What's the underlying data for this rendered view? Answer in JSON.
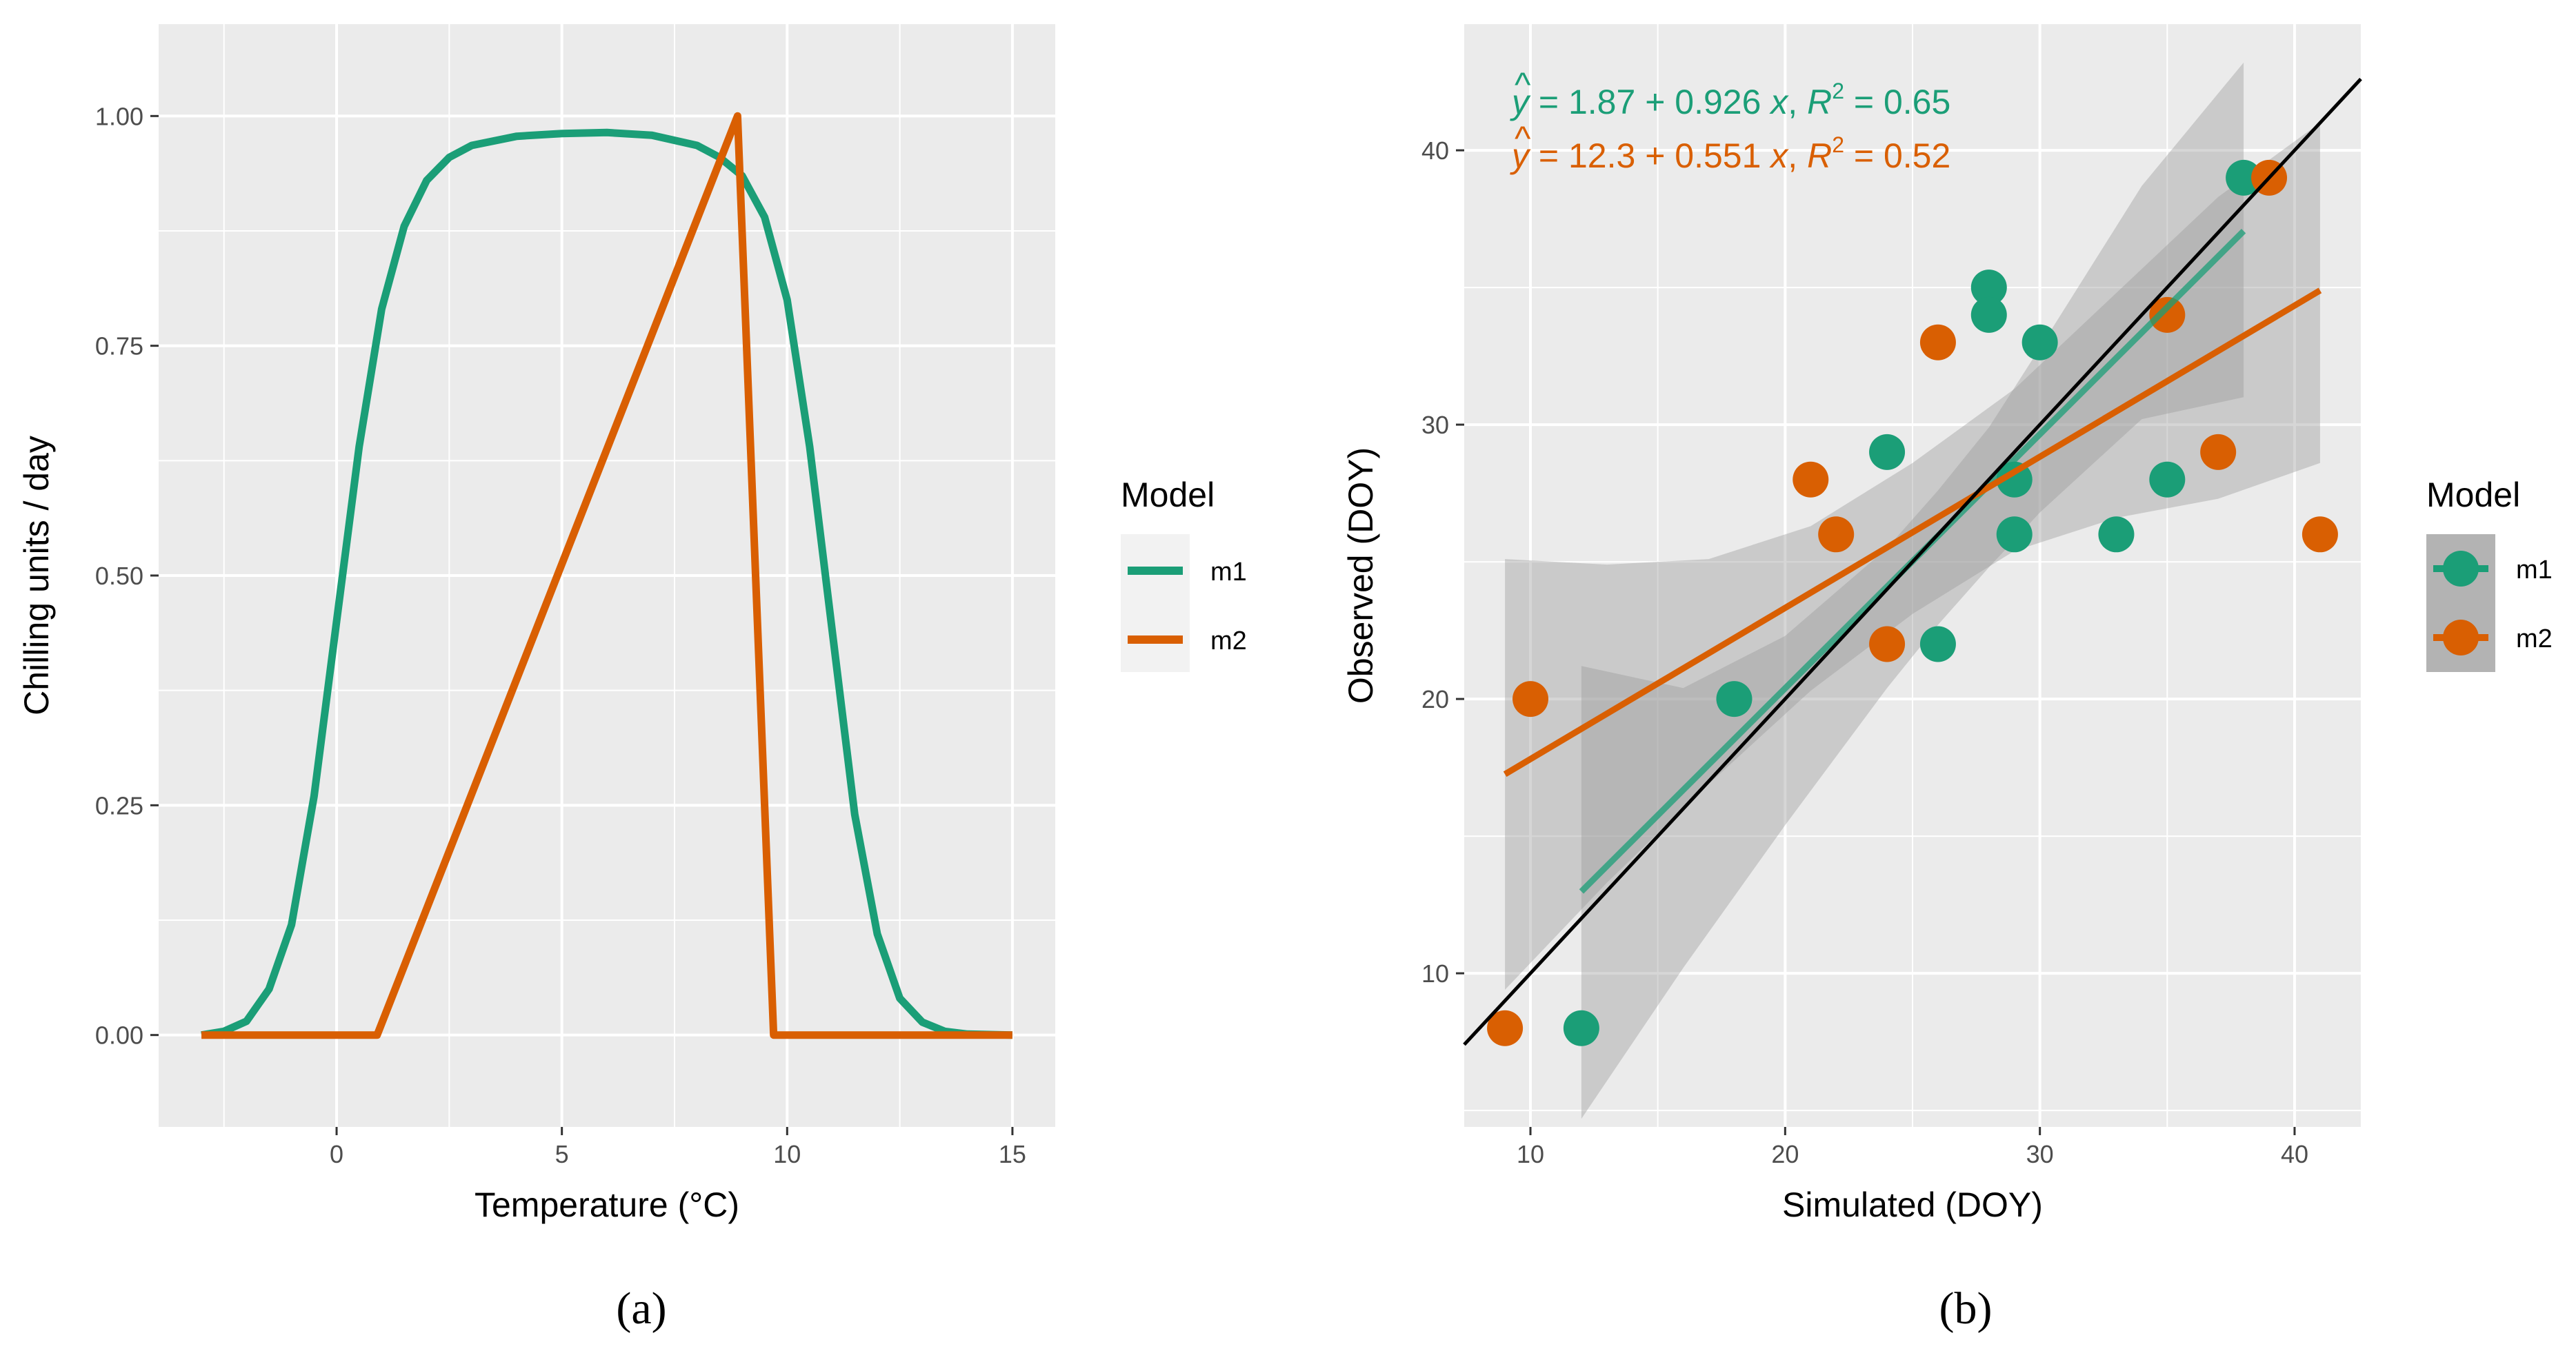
{
  "colors": {
    "panel_bg": "#ebebeb",
    "grid": "#ffffff",
    "m1": "#1b9e77",
    "m2": "#d95f02",
    "ribbon": "#999999",
    "identity_line": "#000000"
  },
  "chart_data": [
    {
      "type": "line",
      "panel_label": "(a)",
      "xlabel": "Temperature (°C)",
      "ylabel": "Chilling units / day",
      "xlim": [
        -3.95,
        15.95
      ],
      "ylim": [
        -0.1,
        1.1
      ],
      "x_ticks": [
        0,
        5,
        10,
        15
      ],
      "y_ticks": [
        0,
        0.25,
        0.5,
        0.75,
        1.0
      ],
      "y_tick_labels": [
        "0.00",
        "0.25",
        "0.50",
        "0.75",
        "1.00"
      ],
      "grid": true,
      "legend": {
        "title": "Model",
        "position": "right"
      },
      "series": [
        {
          "name": "m1",
          "color": "#1b9e77",
          "x": [
            -3,
            -2.5,
            -2,
            -1.5,
            -1,
            -0.5,
            0,
            0.5,
            1,
            1.5,
            2,
            2.5,
            3,
            4,
            5,
            6,
            7,
            8,
            8.5,
            9,
            9.5,
            10,
            10.5,
            11,
            11.5,
            12,
            12.5,
            13,
            13.5,
            14,
            15
          ],
          "y": [
            0.0,
            0.004,
            0.015,
            0.05,
            0.12,
            0.26,
            0.45,
            0.64,
            0.79,
            0.88,
            0.93,
            0.955,
            0.968,
            0.978,
            0.981,
            0.982,
            0.979,
            0.968,
            0.955,
            0.935,
            0.89,
            0.8,
            0.64,
            0.44,
            0.24,
            0.11,
            0.04,
            0.014,
            0.004,
            0.001,
            0.0
          ]
        },
        {
          "name": "m2",
          "color": "#d95f02",
          "x": [
            -3,
            0.9,
            8.9,
            9.7,
            15
          ],
          "y": [
            0,
            0,
            1.0,
            0,
            0
          ]
        }
      ]
    },
    {
      "type": "scatter",
      "panel_label": "(b)",
      "xlabel": "Simulated (DOY)",
      "ylabel": "Observed (DOY)",
      "xlim": [
        7.4,
        42.6
      ],
      "ylim": [
        4.4,
        44.6
      ],
      "x_ticks": [
        10,
        20,
        30,
        40
      ],
      "y_ticks": [
        10,
        20,
        30,
        40
      ],
      "grid": true,
      "legend": {
        "title": "Model",
        "position": "right"
      },
      "identity_line": {
        "x": [
          7.4,
          42.6
        ],
        "y": [
          7.4,
          42.6
        ]
      },
      "annotations": [
        {
          "series": "m1",
          "equation": "ŷ = 1.87 + 0.926 x, R² = 0.65",
          "parts": {
            "yhat": "y",
            "hat": "^",
            "eq_mid": " = 1.87 + 0.926 ",
            "x_var": "x",
            "comma": ", ",
            "r": "R",
            "sup": "2",
            "eq_end": " = 0.65"
          }
        },
        {
          "series": "m2",
          "equation": "ŷ = 12.3 + 0.551 x, R² = 0.52",
          "parts": {
            "yhat": "y",
            "hat": "^",
            "eq_mid": " = 12.3 + 0.551 ",
            "x_var": "x",
            "comma": ", ",
            "r": "R",
            "sup": "2",
            "eq_end": " = 0.52"
          }
        }
      ],
      "series": [
        {
          "name": "m1",
          "color": "#1b9e77",
          "points": [
            [
              12,
              8
            ],
            [
              18,
              20
            ],
            [
              24,
              29
            ],
            [
              26,
              22
            ],
            [
              28,
              35
            ],
            [
              28,
              34
            ],
            [
              29,
              28
            ],
            [
              29,
              26
            ],
            [
              30,
              33
            ],
            [
              33,
              26
            ],
            [
              35,
              28
            ],
            [
              38,
              39
            ]
          ],
          "fit": {
            "intercept": 1.87,
            "slope": 0.926,
            "x_range": [
              12,
              38
            ]
          },
          "ci_band": {
            "x": [
              12,
              16,
              20,
              24,
              26,
              28,
              30,
              34,
              38
            ],
            "lower": [
              4.7,
              10.2,
              15.4,
              20.4,
              22.7,
              24.8,
              26.8,
              30.2,
              31.0
            ],
            "upper": [
              21.2,
              20.4,
              22.3,
              25.5,
              27.6,
              29.9,
              32.8,
              38.7,
              43.2
            ]
          }
        },
        {
          "name": "m2",
          "color": "#d95f02",
          "points": [
            [
              9,
              8
            ],
            [
              10,
              20
            ],
            [
              21,
              28
            ],
            [
              22,
              26
            ],
            [
              24,
              22
            ],
            [
              26,
              33
            ],
            [
              35,
              34
            ],
            [
              37,
              29
            ],
            [
              39,
              39
            ],
            [
              41,
              26
            ]
          ],
          "fit": {
            "intercept": 12.3,
            "slope": 0.551,
            "x_range": [
              9,
              41
            ]
          },
          "ci_band": {
            "x": [
              9,
              13,
              17,
              21,
              25,
              29,
              33,
              37,
              41
            ],
            "lower": [
              9.4,
              13.3,
              16.9,
              20.3,
              23.1,
              25.4,
              26.6,
              27.3,
              28.6
            ],
            "upper": [
              25.1,
              24.9,
              25.1,
              26.3,
              28.6,
              31.3,
              34.8,
              38.3,
              41.0
            ]
          }
        }
      ]
    }
  ]
}
